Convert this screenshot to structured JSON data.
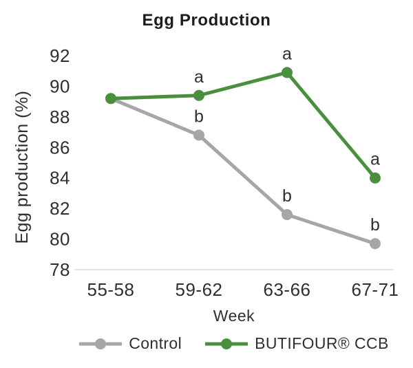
{
  "chart_data": {
    "type": "line",
    "title": "Egg Production",
    "xlabel": "Week",
    "ylabel": "Egg production (%)",
    "categories": [
      "55-58",
      "59-62",
      "63-66",
      "67-71"
    ],
    "yticks": [
      78,
      80,
      82,
      84,
      86,
      88,
      90,
      92
    ],
    "ylim": [
      78,
      92
    ],
    "grid": false,
    "legend_position": "bottom",
    "series": [
      {
        "name": "Control",
        "color": "#a6a6a6",
        "values": [
          89.2,
          86.8,
          81.6,
          79.7
        ],
        "point_labels": [
          "",
          "b",
          "b",
          "b"
        ]
      },
      {
        "name": "BUTIFOUR® CCB",
        "color": "#4a8f3e",
        "values": [
          89.2,
          89.4,
          90.9,
          84.0
        ],
        "point_labels": [
          "",
          "a",
          "a",
          "a"
        ]
      }
    ],
    "colors": {
      "axis_line": "#d9d9d9",
      "tick_text": "#2f2f2f",
      "title_text": "#1d1d1d",
      "background": "#ffffff"
    }
  }
}
